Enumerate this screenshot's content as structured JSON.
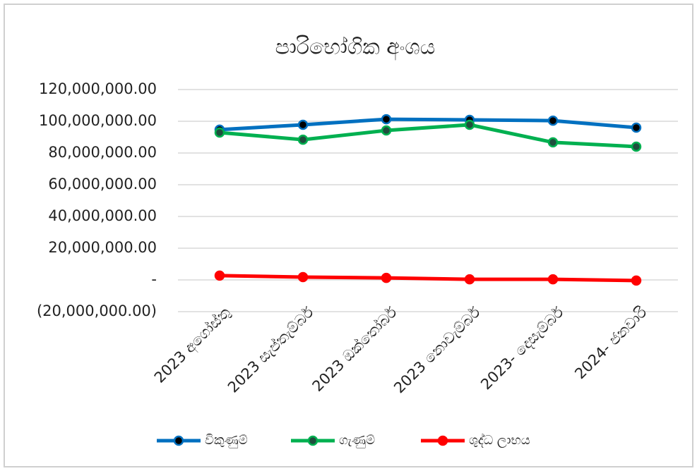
{
  "chart_data": {
    "type": "line",
    "title": "පාරිභෝගික අංශය",
    "categories": [
      "2023 අගෝස්තු",
      "2023 සැප්තැම්බර්",
      "2023 ඔක්තෝබර්",
      "2023 නොවැම්බර්",
      "2023- දෙසැම්බර්",
      "2024- ජනවාරි"
    ],
    "series": [
      {
        "name": "විකුණුම්",
        "color": "#0070c0",
        "marker_fill": "#000000",
        "values": [
          94700000,
          97800000,
          101300000,
          100900000,
          100400000,
          96000000
        ]
      },
      {
        "name": "ගැණුම්",
        "color": "#00b050",
        "marker_fill": "#1f4e3d",
        "values": [
          92900000,
          88400000,
          94200000,
          97800000,
          86700000,
          84000000
        ]
      },
      {
        "name": "ශුද්ධ ලාභය",
        "color": "#ff0000",
        "marker_fill": "#ff0000",
        "values": [
          2700000,
          1800000,
          1300000,
          400000,
          400000,
          -400000
        ]
      }
    ],
    "ylim": [
      -20000000,
      120000000
    ],
    "yticks": [
      {
        "value": -20000000,
        "label": "(20,000,000.00)"
      },
      {
        "value": 0,
        "label": "-"
      },
      {
        "value": 20000000,
        "label": "20,000,000.00"
      },
      {
        "value": 40000000,
        "label": "40,000,000.00"
      },
      {
        "value": 60000000,
        "label": "60,000,000.00"
      },
      {
        "value": 80000000,
        "label": "80,000,000.00"
      },
      {
        "value": 100000000,
        "label": "100,000,000.00"
      },
      {
        "value": 120000000,
        "label": "120,000,000.00"
      }
    ],
    "grid": true,
    "legend": "bottom"
  }
}
